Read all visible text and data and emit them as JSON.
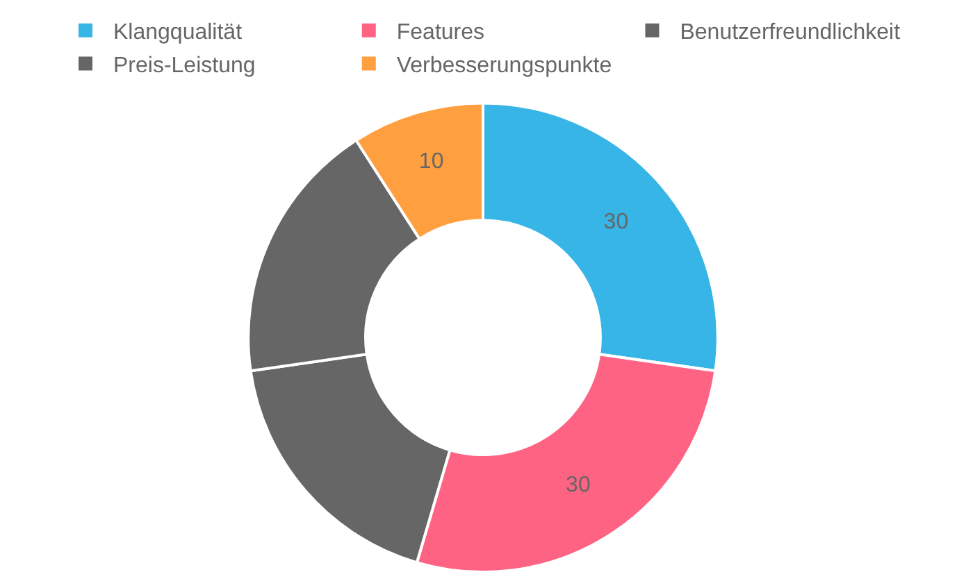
{
  "chart_data": {
    "type": "donut",
    "categories": [
      "Klangqualität",
      "Features",
      "Benutzerfreundlichkeit",
      "Preis-Leistung",
      "Verbesserungspunkte"
    ],
    "values": [
      30,
      30,
      20,
      20,
      10
    ],
    "colors": [
      "#36b5e6",
      "#ff6384",
      "#666666",
      "#666666",
      "#ff9f40"
    ],
    "value_labels": [
      "30",
      "30",
      null,
      null,
      "10"
    ],
    "legend": "top"
  }
}
